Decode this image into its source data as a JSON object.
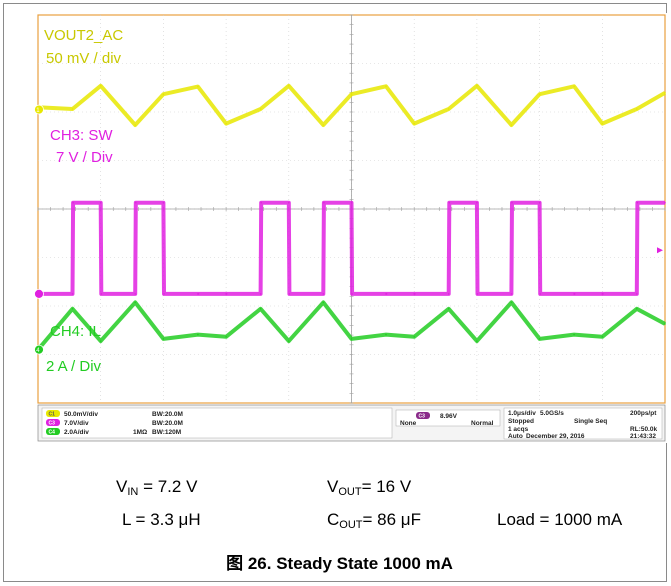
{
  "chart_data": {
    "type": "line",
    "title": "",
    "time_scale": "1.0μs/div",
    "sample_rate": "5.0GS/s",
    "point_interval": "200ps/pt",
    "record_length": "RL:50.0k",
    "series": [
      {
        "name": "VOUT2_AC",
        "scale_label": "50 mV / div",
        "color": "#e8e800",
        "channel_marker": "1",
        "x": [
          0,
          0.55,
          1.0,
          1.55,
          2.0,
          2.55,
          3.0,
          3.55,
          4.0,
          4.55,
          5.0,
          5.55,
          6.0,
          6.55,
          7.0,
          7.55,
          8.0,
          8.55,
          9.0,
          9.55,
          10.0
        ],
        "values": [
          0.08,
          0.02,
          0.85,
          -0.55,
          0.55,
          0.82,
          -0.5,
          0.02,
          0.85,
          -0.55,
          0.55,
          0.83,
          -0.5,
          0.02,
          0.85,
          -0.55,
          0.55,
          0.83,
          -0.5,
          0.02,
          0.6
        ]
      },
      {
        "name": "CH3: SW",
        "scale_label": "7 V / Div",
        "color": "#e020e0",
        "channel_marker": "SW",
        "x": [
          0,
          0.55,
          0.56,
          1.0,
          1.01,
          1.55,
          1.56,
          2.0,
          2.01,
          2.55,
          2.56,
          3.0,
          3.01,
          3.55,
          3.56,
          4.0,
          4.01,
          4.55,
          4.56,
          5.0,
          5.01,
          5.55,
          5.56,
          6.0,
          6.01,
          6.55,
          6.56,
          7.0,
          7.01,
          7.55,
          7.56,
          8.0,
          8.01,
          8.55,
          8.56,
          9.0,
          9.01,
          9.55,
          9.56,
          10.0
        ],
        "values": [
          0,
          0,
          2.28,
          2.28,
          0,
          0,
          2.28,
          2.28,
          0,
          0,
          0,
          0,
          0,
          0,
          2.28,
          2.28,
          0,
          0,
          2.28,
          2.28,
          0,
          0,
          0,
          0,
          0,
          0,
          2.28,
          2.28,
          0,
          0,
          2.28,
          2.28,
          0,
          0,
          0,
          0,
          0,
          0,
          2.28,
          2.28
        ]
      },
      {
        "name": "CH4: IL",
        "scale_label": "2 A / Div",
        "color": "#22cc22",
        "channel_marker": "4",
        "x": [
          0,
          0.55,
          1.0,
          1.55,
          2.0,
          2.55,
          3.0,
          3.55,
          4.0,
          4.55,
          5.0,
          5.55,
          6.0,
          6.55,
          7.0,
          7.55,
          8.0,
          8.55,
          9.0,
          9.55,
          10.0
        ],
        "values": [
          0,
          0.95,
          0.2,
          1.1,
          0.25,
          0.35,
          0.3,
          0.95,
          0.2,
          1.1,
          0.25,
          0.35,
          0.3,
          0.95,
          0.2,
          1.1,
          0.25,
          0.35,
          0.3,
          0.95,
          0.6
        ]
      }
    ],
    "grid": true
  },
  "scope_panel": {
    "ch1": {
      "badge": "C1",
      "scale": "50.0mV/div",
      "bw": "BW:20.0M"
    },
    "ch3": {
      "badge": "C3",
      "scale": "7.0V/div",
      "bw": "BW:20.0M"
    },
    "ch4": {
      "badge": "C4",
      "scale": "2.0A/div",
      "imp": "1MΩ",
      "bw": "BW:120M"
    },
    "trigger": {
      "badge": "C3",
      "level": "8.96V",
      "coupling": "None",
      "mode": "Normal"
    },
    "acq": {
      "timebase": "1.0μs/div",
      "rate": "5.0GS/s",
      "interval": "200ps/pt",
      "state": "Stopped",
      "seq": "Single Seq",
      "count": "1 acqs",
      "rl": "RL:50.0k",
      "mode": "Auto",
      "date": "December 29, 2016",
      "time": "21:43:32"
    }
  },
  "conditions": {
    "vin_label": "V",
    "vin_sub": "IN",
    "vin_value": " = 7.2 V",
    "vout_label": "V",
    "vout_sub": "OUT",
    "vout_value": "= 16 V",
    "l_text": "L = 3.3 μH",
    "cout_label": "C",
    "cout_sub": "OUT",
    "cout_value": "= 86 μF",
    "load_text": "Load = 1000 mA"
  },
  "caption": "图 26. Steady State 1000 mA"
}
